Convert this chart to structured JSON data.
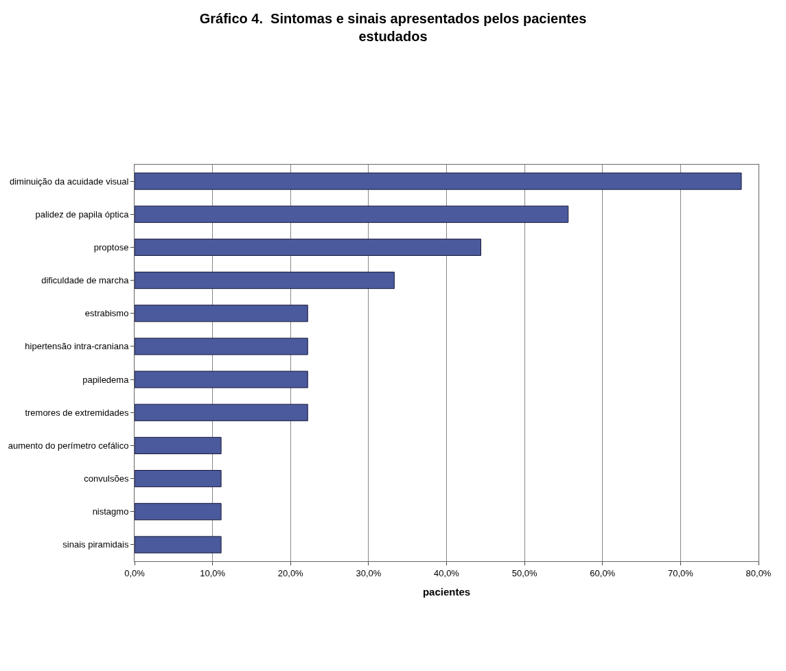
{
  "chart_data": {
    "type": "bar",
    "orientation": "horizontal",
    "title": "Gráfico 4.  Sintomas e sinais apresentados pelos pacientes estudados",
    "xlabel": "pacientes",
    "categories": [
      "diminuição da acuidade visual",
      "palidez de papila óptica",
      "proptose",
      "dificuldade de marcha",
      "estrabismo",
      "hipertensão intra-craniana",
      "papiledema",
      "tremores de extremidades",
      "aumento do perímetro cefálico",
      "convulsões",
      "nistagmo",
      "sinais piramidais"
    ],
    "values": [
      77.8,
      55.6,
      44.4,
      33.3,
      22.2,
      22.2,
      22.2,
      22.2,
      11.1,
      11.1,
      11.1,
      11.1
    ],
    "color": "#4a5a9c",
    "xlim": [
      0,
      80
    ],
    "xticks": [
      {
        "value": 0,
        "label": "0,0%"
      },
      {
        "value": 10,
        "label": "10,0%"
      },
      {
        "value": 20,
        "label": "20,0%"
      },
      {
        "value": 30,
        "label": "30,0%"
      },
      {
        "value": 40,
        "label": "40,0%"
      },
      {
        "value": 50,
        "label": "50,0%"
      },
      {
        "value": 60,
        "label": "60,0%"
      },
      {
        "value": 70,
        "label": "70,0%"
      },
      {
        "value": 80,
        "label": "80,0%"
      }
    ],
    "grid": "x"
  }
}
